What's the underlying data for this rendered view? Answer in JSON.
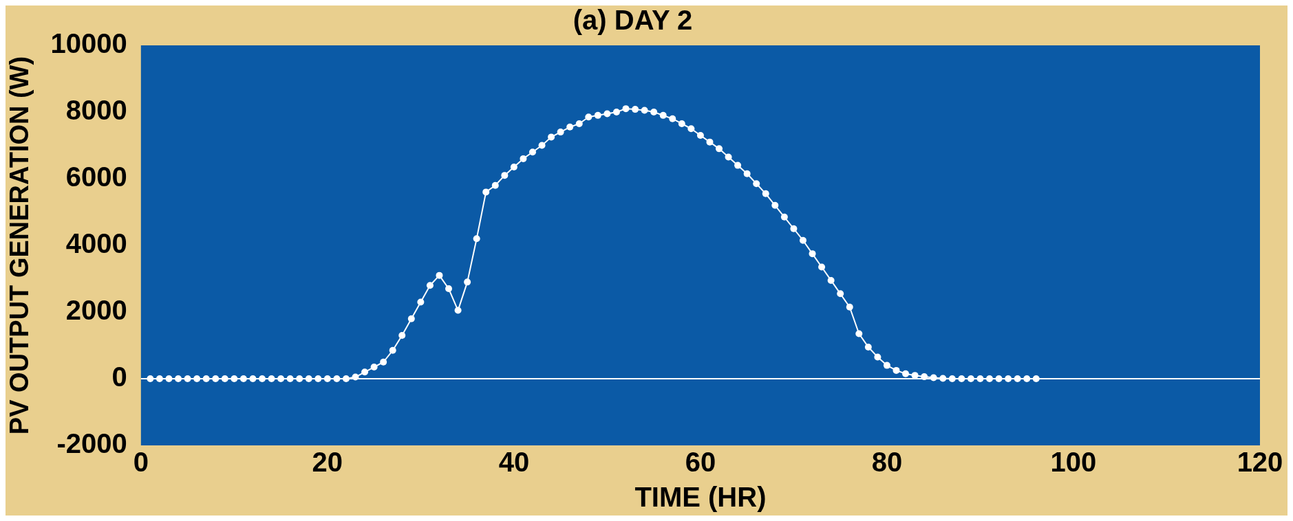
{
  "chart_data": {
    "type": "line",
    "title": "(a) DAY 2",
    "xlabel": "TIME (HR)",
    "ylabel": "PV OUTPUT GENERATION (W)",
    "x": [
      1,
      2,
      3,
      4,
      5,
      6,
      7,
      8,
      9,
      10,
      11,
      12,
      13,
      14,
      15,
      16,
      17,
      18,
      19,
      20,
      21,
      22,
      23,
      24,
      25,
      26,
      27,
      28,
      29,
      30,
      31,
      32,
      33,
      34,
      35,
      36,
      37,
      38,
      39,
      40,
      41,
      42,
      43,
      44,
      45,
      46,
      47,
      48,
      49,
      50,
      51,
      52,
      53,
      54,
      55,
      56,
      57,
      58,
      59,
      60,
      61,
      62,
      63,
      64,
      65,
      66,
      67,
      68,
      69,
      70,
      71,
      72,
      73,
      74,
      75,
      76,
      77,
      78,
      79,
      80,
      81,
      82,
      83,
      84,
      85,
      86,
      87,
      88,
      89,
      90,
      91,
      92,
      93,
      94,
      95,
      96
    ],
    "series": [
      {
        "color": "#ffffff",
        "values": [
          0,
          0,
          0,
          0,
          0,
          0,
          0,
          0,
          0,
          0,
          0,
          0,
          0,
          0,
          0,
          0,
          0,
          0,
          0,
          0,
          0,
          0,
          50,
          200,
          350,
          500,
          850,
          1300,
          1800,
          2300,
          2800,
          3100,
          2700,
          2050,
          2900,
          4200,
          5600,
          5800,
          6100,
          6350,
          6600,
          6800,
          7000,
          7250,
          7400,
          7550,
          7650,
          7850,
          7900,
          7950,
          8000,
          8100,
          8080,
          8050,
          8000,
          7900,
          7800,
          7650,
          7500,
          7300,
          7100,
          6900,
          6650,
          6400,
          6150,
          5850,
          5550,
          5200,
          4850,
          4500,
          4150,
          3750,
          3350,
          2950,
          2550,
          2150,
          1350,
          950,
          650,
          400,
          250,
          150,
          100,
          60,
          30,
          10,
          0,
          0,
          0,
          0,
          0,
          0,
          0,
          0,
          0,
          0
        ]
      }
    ],
    "xlim": [
      0,
      120
    ],
    "xticks": [
      0,
      20,
      40,
      60,
      80,
      100,
      120
    ],
    "ylim": [
      -2000,
      10000
    ],
    "yticks": [
      -2000,
      0,
      2000,
      4000,
      6000,
      8000,
      10000
    ],
    "ref_lines": [
      {
        "axis": "y",
        "value": 0,
        "color": "#ffffff"
      }
    ],
    "grid": false,
    "legend": false,
    "marker": "circle",
    "line_style": "solid"
  }
}
